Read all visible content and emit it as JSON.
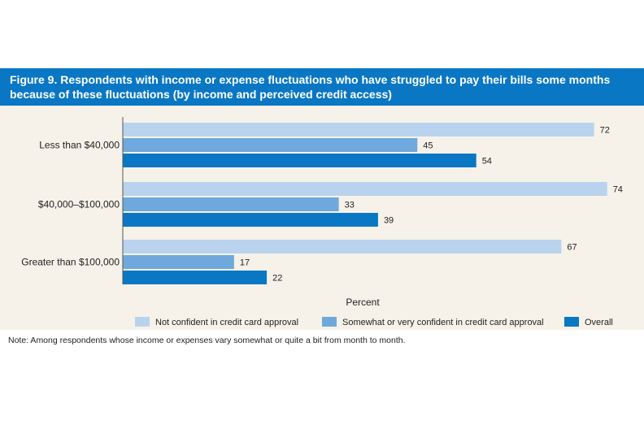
{
  "figure": {
    "title": "Figure 9. Respondents with income or expense fluctuations who have struggled to pay their bills some months because of these fluctuations (by income and perceived credit access)",
    "note": "Note: Among respondents whose income or expenses vary somewhat or quite a bit from month to month."
  },
  "chart_data": {
    "type": "bar",
    "orientation": "horizontal",
    "categories": [
      "Less than $40,000",
      "$40,000–$100,000",
      "Greater than $100,000"
    ],
    "series": [
      {
        "name": "Not confident in credit card approval",
        "values": [
          72,
          74,
          67
        ],
        "color": "#b9d3ee"
      },
      {
        "name": "Somewhat or very confident in credit card approval",
        "values": [
          45,
          33,
          17
        ],
        "color": "#6fa8dc"
      },
      {
        "name": "Overall",
        "values": [
          54,
          39,
          22
        ],
        "color": "#0a77c4"
      }
    ],
    "title": "Figure 9. Respondents with income or expense fluctuations who have struggled to pay their bills some months because of these fluctuations (by income and perceived credit access)",
    "xlabel": "Percent",
    "ylabel": "",
    "xlim": [
      0,
      100
    ],
    "grid": false,
    "legend": "bottom"
  }
}
